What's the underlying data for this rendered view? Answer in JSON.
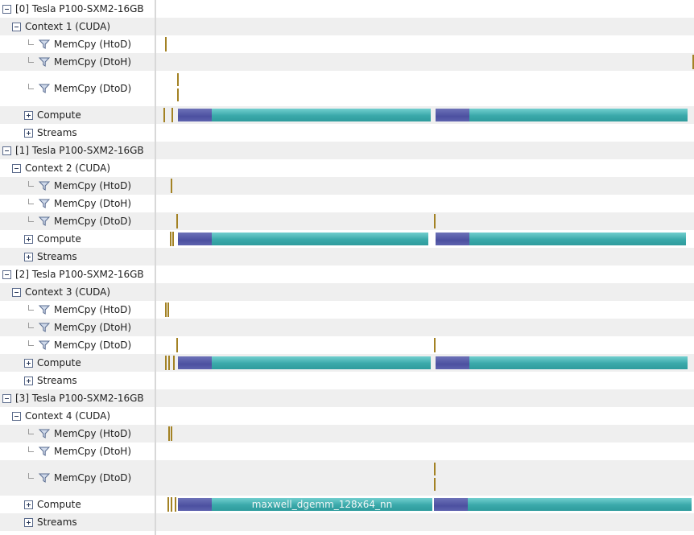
{
  "devices": [
    {
      "name": "[0] Tesla P100-SXM2-16GB",
      "context": "Context 1 (CUDA)",
      "memcpy": [
        "MemCpy (HtoD)",
        "MemCpy (DtoH)",
        "MemCpy (DtoD)"
      ],
      "compute": "Compute",
      "streams": "Streams"
    },
    {
      "name": "[1] Tesla P100-SXM2-16GB",
      "context": "Context 2 (CUDA)",
      "memcpy": [
        "MemCpy (HtoD)",
        "MemCpy (DtoH)",
        "MemCpy (DtoD)"
      ],
      "compute": "Compute",
      "streams": "Streams"
    },
    {
      "name": "[2] Tesla P100-SXM2-16GB",
      "context": "Context 3 (CUDA)",
      "memcpy": [
        "MemCpy (HtoD)",
        "MemCpy (DtoH)",
        "MemCpy (DtoD)"
      ],
      "compute": "Compute",
      "streams": "Streams"
    },
    {
      "name": "[3] Tesla P100-SXM2-16GB",
      "context": "Context 4 (CUDA)",
      "memcpy": [
        "MemCpy (HtoD)",
        "MemCpy (DtoH)",
        "MemCpy (DtoD)"
      ],
      "compute": "Compute",
      "streams": "Streams"
    }
  ],
  "kernel_label": "maxwell_dgemm_128x64_nn",
  "colors": {
    "memcpy_mark": "#a38224",
    "kernel_primary": "#5257a4",
    "kernel_secondary": "#3aa9aa",
    "row_alt": "#efefef"
  },
  "icons": {
    "collapse": "minus-box-icon",
    "expand": "plus-box-icon",
    "filter": "filter-funnel-icon",
    "tree_branch": "tree-elbow-icon"
  }
}
